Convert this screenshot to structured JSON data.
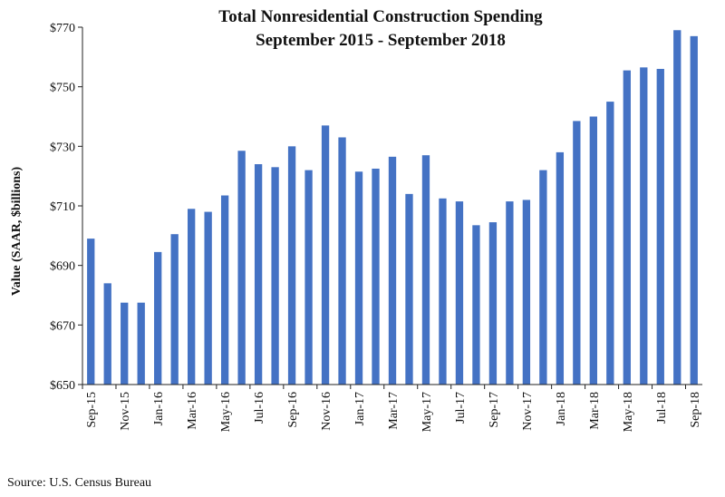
{
  "chart_data": {
    "type": "bar",
    "title_line1": "Total Nonresidential Construction Spending",
    "title_line2": "September 2015 - September 2018",
    "ylabel": "Value (SAAR, $billions)",
    "xlabel": "",
    "ylim": [
      650,
      770
    ],
    "y_ticks": [
      650,
      670,
      690,
      710,
      730,
      750,
      770
    ],
    "y_tick_labels": [
      "$650",
      "$670",
      "$690",
      "$710",
      "$730",
      "$750",
      "$770"
    ],
    "categories": [
      "Sep-15",
      "Oct-15",
      "Nov-15",
      "Dec-15",
      "Jan-16",
      "Feb-16",
      "Mar-16",
      "Apr-16",
      "May-16",
      "Jun-16",
      "Jul-16",
      "Aug-16",
      "Sep-16",
      "Oct-16",
      "Nov-16",
      "Dec-16",
      "Jan-17",
      "Feb-17",
      "Mar-17",
      "Apr-17",
      "May-17",
      "Jun-17",
      "Jul-17",
      "Aug-17",
      "Sep-17",
      "Oct-17",
      "Nov-17",
      "Dec-17",
      "Jan-18",
      "Feb-18",
      "Mar-18",
      "Apr-18",
      "May-18",
      "Jun-18",
      "Jul-18",
      "Aug-18",
      "Sep-18"
    ],
    "x_tick_labels": [
      "Sep-15",
      "Nov-15",
      "Jan-16",
      "Mar-16",
      "May-16",
      "Jul-16",
      "Sep-16",
      "Nov-16",
      "Jan-17",
      "Mar-17",
      "May-17",
      "Jul-17",
      "Sep-17",
      "Nov-17",
      "Jan-18",
      "Mar-18",
      "May-18",
      "Jul-18",
      "Sep-18"
    ],
    "values": [
      699,
      684,
      677.5,
      677.5,
      694.5,
      700.5,
      709,
      708,
      713.5,
      728.5,
      724,
      723,
      730,
      722,
      737,
      733,
      721.5,
      722.5,
      726.5,
      714,
      727,
      712.5,
      711.5,
      703.5,
      704.5,
      711.5,
      712,
      722,
      728,
      738.5,
      740,
      745,
      755.5,
      756.5,
      756,
      769,
      767
    ],
    "bar_color": "#4472C4",
    "grid": false,
    "legend": "none"
  },
  "source": "Source:  U.S. Census Bureau"
}
